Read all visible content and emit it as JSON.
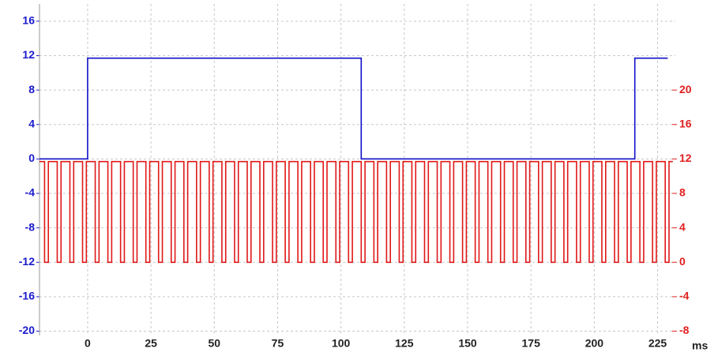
{
  "chart_data": {
    "type": "line",
    "x_unit": "ms",
    "xlim": [
      -19,
      232
    ],
    "xticks": [
      0,
      25,
      50,
      75,
      100,
      125,
      150,
      175,
      200,
      225
    ],
    "ylim": [
      -20.5,
      18
    ],
    "yticks": [
      -20,
      -16,
      -12,
      -8,
      -4,
      0,
      4,
      8,
      12,
      16
    ],
    "y2lim": [
      -8.5,
      30
    ],
    "y2ticks": [
      -8,
      -4,
      0,
      4,
      8,
      12,
      16,
      20
    ],
    "grid": true,
    "ycolor": "#1a1acc",
    "y2color": "#e02020",
    "series": [
      {
        "color": "#1010c8",
        "x": [
          -19,
          0,
          0,
          108,
          108,
          216,
          216,
          229
        ],
        "values": [
          0,
          0,
          11.7,
          11.7,
          0,
          0,
          11.7,
          11.7
        ]
      },
      {
        "color": "#e01818",
        "axis": "y2",
        "x": [
          -19,
          -17,
          -17,
          -15.5,
          -15.5,
          -12,
          -12,
          -10.5,
          -10.5,
          -7,
          -7,
          -5.5,
          -5.5,
          -2,
          -2,
          -0.5,
          -0.5,
          3,
          3,
          4.5,
          4.5,
          8,
          8,
          9.5,
          9.5,
          13,
          13,
          14.5,
          14.5,
          18,
          18,
          19.5,
          19.5,
          23,
          23,
          24.5,
          24.5,
          28,
          28,
          29.5,
          29.5,
          33,
          33,
          34.5,
          34.5,
          38,
          38,
          39.5,
          39.5,
          43,
          43,
          44.5,
          44.5,
          48,
          48,
          49.5,
          49.5,
          53,
          53,
          54.5,
          54.5,
          58,
          58,
          59.5,
          59.5,
          63,
          63,
          64.5,
          64.5,
          68,
          68,
          69.5,
          69.5,
          73,
          73,
          74.5,
          74.5,
          78,
          78,
          79.5,
          79.5,
          83,
          83,
          84.5,
          84.5,
          88,
          88,
          89.5,
          89.5,
          93,
          93,
          94.5,
          94.5,
          98,
          98,
          99.5,
          99.5,
          103,
          103,
          104.5,
          104.5,
          108,
          108,
          109.5,
          109.5,
          113,
          113,
          114.5,
          114.5,
          118,
          118,
          119.5,
          119.5,
          123,
          123,
          124.5,
          124.5,
          128,
          128,
          129.5,
          129.5,
          133,
          133,
          134.5,
          134.5,
          138,
          138,
          139.5,
          139.5,
          143,
          143,
          144.5,
          144.5,
          148,
          148,
          149.5,
          149.5,
          153,
          153,
          154.5,
          154.5,
          158,
          158,
          159.5,
          159.5,
          163,
          163,
          164.5,
          164.5,
          168,
          168,
          169.5,
          169.5,
          173,
          173,
          174.5,
          174.5,
          178,
          178,
          179.5,
          179.5,
          183,
          183,
          184.5,
          184.5,
          188,
          188,
          189.5,
          189.5,
          193,
          193,
          194.5,
          194.5,
          198,
          198,
          199.5,
          199.5,
          203,
          203,
          204.5,
          204.5,
          208,
          208,
          209.5,
          209.5,
          213,
          213,
          214.5,
          214.5,
          218,
          218,
          219.5,
          219.5,
          223,
          223,
          224.5,
          224.5,
          228,
          228,
          229.5,
          229.5,
          231
        ],
        "values": [
          11.7,
          11.7,
          0,
          0,
          11.7,
          11.7,
          0,
          0,
          11.7,
          11.7,
          0,
          0,
          11.7,
          11.7,
          0,
          0,
          11.7,
          11.7,
          0,
          0,
          11.7,
          11.7,
          0,
          0,
          11.7,
          11.7,
          0,
          0,
          11.7,
          11.7,
          0,
          0,
          11.7,
          11.7,
          0,
          0,
          11.7,
          11.7,
          0,
          0,
          11.7,
          11.7,
          0,
          0,
          11.7,
          11.7,
          0,
          0,
          11.7,
          11.7,
          0,
          0,
          11.7,
          11.7,
          0,
          0,
          11.7,
          11.7,
          0,
          0,
          11.7,
          11.7,
          0,
          0,
          11.7,
          11.7,
          0,
          0,
          11.7,
          11.7,
          0,
          0,
          11.7,
          11.7,
          0,
          0,
          11.7,
          11.7,
          0,
          0,
          11.7,
          11.7,
          0,
          0,
          11.7,
          11.7,
          0,
          0,
          11.7,
          11.7,
          0,
          0,
          11.7,
          11.7,
          0,
          0,
          11.7,
          11.7,
          0,
          0,
          11.7,
          11.7,
          0,
          0,
          11.7,
          11.7,
          0,
          0,
          11.7,
          11.7,
          0,
          0,
          11.7,
          11.7,
          0,
          0,
          11.7,
          11.7,
          0,
          0,
          11.7,
          11.7,
          0,
          0,
          11.7,
          11.7,
          0,
          0,
          11.7,
          11.7,
          0,
          0,
          11.7,
          11.7,
          0,
          0,
          11.7,
          11.7,
          0,
          0,
          11.7,
          11.7,
          0,
          0,
          11.7,
          11.7,
          0,
          0,
          11.7,
          11.7,
          0,
          0,
          11.7,
          11.7,
          0,
          0,
          11.7,
          11.7,
          0,
          0,
          11.7,
          11.7,
          0,
          0,
          11.7,
          11.7,
          0,
          0,
          11.7,
          11.7,
          0,
          0,
          11.7,
          11.7,
          0,
          0,
          11.7,
          11.7,
          0,
          0,
          11.7,
          11.7,
          0,
          0,
          11.7,
          11.7,
          0,
          0,
          11.7,
          11.7,
          0,
          0,
          11.7,
          11.7,
          0,
          0,
          11.7,
          11.7,
          0,
          0,
          11.7,
          11.7
        ]
      }
    ]
  }
}
